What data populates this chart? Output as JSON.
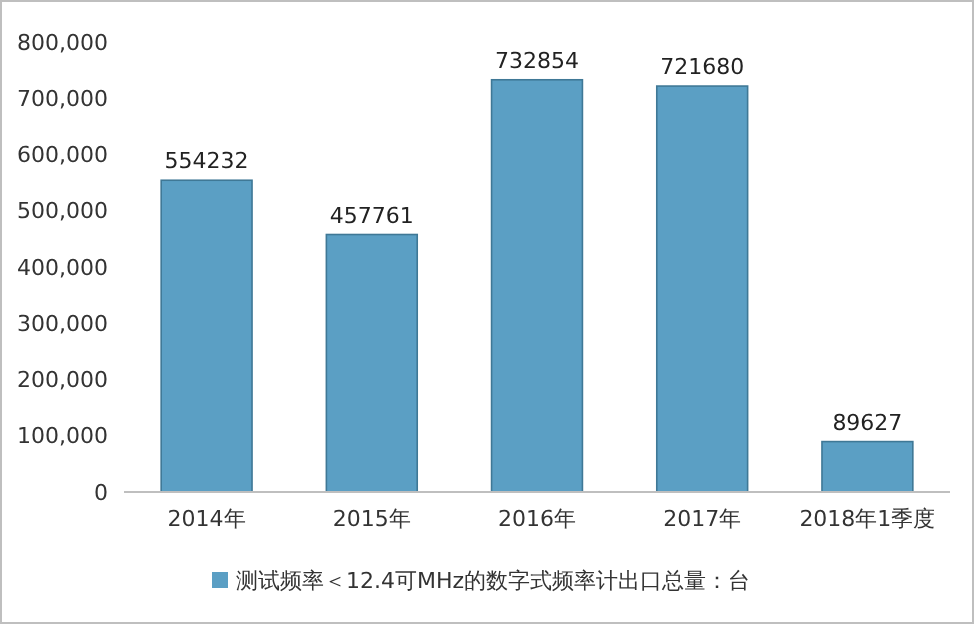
{
  "chart_data": {
    "type": "bar",
    "categories": [
      "2014年",
      "2015年",
      "2016年",
      "2017年",
      "2018年1季度"
    ],
    "series": [
      {
        "name": "测试频率＜12.4可MHz的数字式频率计出口总量：台",
        "color": "#5b9fc4",
        "values": [
          554232,
          457761,
          732854,
          721680,
          89627
        ]
      }
    ],
    "ylim": [
      0,
      800000
    ],
    "yticks": [
      {
        "value": 0,
        "label": "0"
      },
      {
        "value": 100000,
        "label": "100,000"
      },
      {
        "value": 200000,
        "label": "200,000"
      },
      {
        "value": 300000,
        "label": "300,000"
      },
      {
        "value": 400000,
        "label": "400,000"
      },
      {
        "value": 500000,
        "label": "500,000"
      },
      {
        "value": 600000,
        "label": "600,000"
      },
      {
        "value": 700000,
        "label": "700,000"
      },
      {
        "value": 800000,
        "label": "800,000"
      }
    ],
    "data_labels": true,
    "legend": "bottom",
    "grid": false
  }
}
